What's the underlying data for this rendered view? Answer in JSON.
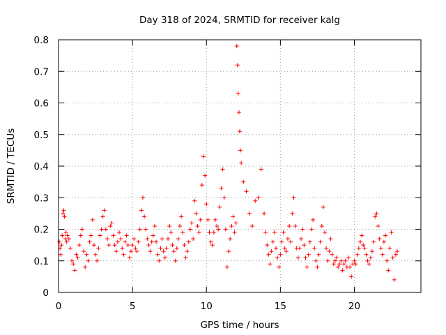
{
  "chart_data": {
    "type": "scatter",
    "title": "Day 318 of 2024, SRMTID for receiver kalg",
    "xlabel": "GPS time / hours",
    "ylabel": "SRMTID / TECUs",
    "xlim": [
      0,
      24.5
    ],
    "ylim": [
      0,
      0.8
    ],
    "xticks": [
      0,
      5,
      10,
      15,
      20
    ],
    "xtick_labels": [
      "0",
      "5",
      "10",
      "15",
      "20"
    ],
    "yticks": [
      0,
      0.1,
      0.2,
      0.3,
      0.4,
      0.5,
      0.6,
      0.7,
      0.8
    ],
    "ytick_labels": [
      "0",
      "0.1",
      "0.2",
      "0.3",
      "0.4",
      "0.5",
      "0.6",
      "0.7",
      "0.8"
    ],
    "grid": true,
    "marker": "+",
    "series_color": "#ff0000",
    "series": [
      {
        "name": "SRMTID",
        "points": [
          [
            0.05,
            0.16
          ],
          [
            0.1,
            0.14
          ],
          [
            0.15,
            0.12
          ],
          [
            0.2,
            0.15
          ],
          [
            0.25,
            0.18
          ],
          [
            0.3,
            0.25
          ],
          [
            0.35,
            0.26
          ],
          [
            0.4,
            0.24
          ],
          [
            0.45,
            0.17
          ],
          [
            0.5,
            0.19
          ],
          [
            0.55,
            0.16
          ],
          [
            0.6,
            0.18
          ],
          [
            0.7,
            0.17
          ],
          [
            0.8,
            0.14
          ],
          [
            0.9,
            0.1
          ],
          [
            1.0,
            0.09
          ],
          [
            1.1,
            0.07
          ],
          [
            1.2,
            0.12
          ],
          [
            1.3,
            0.11
          ],
          [
            1.4,
            0.15
          ],
          [
            1.5,
            0.18
          ],
          [
            1.6,
            0.2
          ],
          [
            1.7,
            0.13
          ],
          [
            1.8,
            0.08
          ],
          [
            1.9,
            0.12
          ],
          [
            2.0,
            0.1
          ],
          [
            2.1,
            0.16
          ],
          [
            2.2,
            0.18
          ],
          [
            2.3,
            0.23
          ],
          [
            2.4,
            0.15
          ],
          [
            2.5,
            0.12
          ],
          [
            2.6,
            0.1
          ],
          [
            2.7,
            0.14
          ],
          [
            2.8,
            0.18
          ],
          [
            2.9,
            0.2
          ],
          [
            3.0,
            0.24
          ],
          [
            3.1,
            0.26
          ],
          [
            3.2,
            0.2
          ],
          [
            3.3,
            0.17
          ],
          [
            3.4,
            0.15
          ],
          [
            3.5,
            0.21
          ],
          [
            3.6,
            0.22
          ],
          [
            3.7,
            0.18
          ],
          [
            3.8,
            0.15
          ],
          [
            3.9,
            0.13
          ],
          [
            4.0,
            0.16
          ],
          [
            4.1,
            0.19
          ],
          [
            4.2,
            0.17
          ],
          [
            4.3,
            0.14
          ],
          [
            4.4,
            0.12
          ],
          [
            4.5,
            0.16
          ],
          [
            4.6,
            0.18
          ],
          [
            4.7,
            0.15
          ],
          [
            4.8,
            0.11
          ],
          [
            4.9,
            0.13
          ],
          [
            5.0,
            0.15
          ],
          [
            5.1,
            0.17
          ],
          [
            5.2,
            0.14
          ],
          [
            5.3,
            0.13
          ],
          [
            5.4,
            0.16
          ],
          [
            5.5,
            0.2
          ],
          [
            5.6,
            0.26
          ],
          [
            5.7,
            0.3
          ],
          [
            5.8,
            0.24
          ],
          [
            5.9,
            0.2
          ],
          [
            6.0,
            0.17
          ],
          [
            6.1,
            0.15
          ],
          [
            6.2,
            0.13
          ],
          [
            6.3,
            0.16
          ],
          [
            6.4,
            0.18
          ],
          [
            6.5,
            0.21
          ],
          [
            6.6,
            0.16
          ],
          [
            6.7,
            0.12
          ],
          [
            6.8,
            0.1
          ],
          [
            6.9,
            0.14
          ],
          [
            7.0,
            0.17
          ],
          [
            7.1,
            0.13
          ],
          [
            7.2,
            0.11
          ],
          [
            7.3,
            0.14
          ],
          [
            7.4,
            0.17
          ],
          [
            7.5,
            0.21
          ],
          [
            7.6,
            0.19
          ],
          [
            7.7,
            0.15
          ],
          [
            7.8,
            0.13
          ],
          [
            7.9,
            0.1
          ],
          [
            8.0,
            0.14
          ],
          [
            8.1,
            0.17
          ],
          [
            8.2,
            0.21
          ],
          [
            8.3,
            0.24
          ],
          [
            8.4,
            0.19
          ],
          [
            8.5,
            0.15
          ],
          [
            8.6,
            0.11
          ],
          [
            8.7,
            0.13
          ],
          [
            8.8,
            0.16
          ],
          [
            8.9,
            0.2
          ],
          [
            9.0,
            0.22
          ],
          [
            9.1,
            0.17
          ],
          [
            9.2,
            0.29
          ],
          [
            9.3,
            0.25
          ],
          [
            9.4,
            0.21
          ],
          [
            9.5,
            0.19
          ],
          [
            9.6,
            0.23
          ],
          [
            9.7,
            0.34
          ],
          [
            9.8,
            0.43
          ],
          [
            9.9,
            0.37
          ],
          [
            10.0,
            0.28
          ],
          [
            10.1,
            0.23
          ],
          [
            10.2,
            0.19
          ],
          [
            10.3,
            0.16
          ],
          [
            10.4,
            0.15
          ],
          [
            10.5,
            0.19
          ],
          [
            10.6,
            0.23
          ],
          [
            10.7,
            0.21
          ],
          [
            10.8,
            0.2
          ],
          [
            10.9,
            0.27
          ],
          [
            11.0,
            0.33
          ],
          [
            11.1,
            0.39
          ],
          [
            11.2,
            0.3
          ],
          [
            11.3,
            0.2
          ],
          [
            11.4,
            0.08
          ],
          [
            11.5,
            0.13
          ],
          [
            11.6,
            0.17
          ],
          [
            11.7,
            0.21
          ],
          [
            11.8,
            0.24
          ],
          [
            11.9,
            0.19
          ],
          [
            12.0,
            0.22
          ],
          [
            12.05,
            0.78
          ],
          [
            12.1,
            0.72
          ],
          [
            12.15,
            0.63
          ],
          [
            12.2,
            0.57
          ],
          [
            12.25,
            0.51
          ],
          [
            12.3,
            0.45
          ],
          [
            12.35,
            0.41
          ],
          [
            12.5,
            0.35
          ],
          [
            12.7,
            0.32
          ],
          [
            12.9,
            0.25
          ],
          [
            13.1,
            0.21
          ],
          [
            13.3,
            0.29
          ],
          [
            13.5,
            0.3
          ],
          [
            13.7,
            0.39
          ],
          [
            13.9,
            0.25
          ],
          [
            14.0,
            0.19
          ],
          [
            14.1,
            0.15
          ],
          [
            14.2,
            0.12
          ],
          [
            14.3,
            0.09
          ],
          [
            14.4,
            0.13
          ],
          [
            14.5,
            0.16
          ],
          [
            14.6,
            0.19
          ],
          [
            14.7,
            0.14
          ],
          [
            14.8,
            0.11
          ],
          [
            14.9,
            0.08
          ],
          [
            15.0,
            0.12
          ],
          [
            15.1,
            0.16
          ],
          [
            15.2,
            0.19
          ],
          [
            15.3,
            0.14
          ],
          [
            15.4,
            0.13
          ],
          [
            15.5,
            0.17
          ],
          [
            15.6,
            0.21
          ],
          [
            15.7,
            0.16
          ],
          [
            15.8,
            0.25
          ],
          [
            15.9,
            0.3
          ],
          [
            16.0,
            0.21
          ],
          [
            16.1,
            0.14
          ],
          [
            16.2,
            0.11
          ],
          [
            16.3,
            0.14
          ],
          [
            16.4,
            0.17
          ],
          [
            16.5,
            0.2
          ],
          [
            16.6,
            0.15
          ],
          [
            16.7,
            0.11
          ],
          [
            16.8,
            0.08
          ],
          [
            16.9,
            0.12
          ],
          [
            17.0,
            0.16
          ],
          [
            17.1,
            0.2
          ],
          [
            17.2,
            0.23
          ],
          [
            17.3,
            0.14
          ],
          [
            17.4,
            0.1
          ],
          [
            17.5,
            0.08
          ],
          [
            17.6,
            0.12
          ],
          [
            17.7,
            0.16
          ],
          [
            17.8,
            0.21
          ],
          [
            17.9,
            0.27
          ],
          [
            18.0,
            0.19
          ],
          [
            18.1,
            0.14
          ],
          [
            18.2,
            0.1
          ],
          [
            18.3,
            0.13
          ],
          [
            18.4,
            0.17
          ],
          [
            18.5,
            0.12
          ],
          [
            18.6,
            0.09
          ],
          [
            18.7,
            0.1
          ],
          [
            18.8,
            0.11
          ],
          [
            18.9,
            0.08
          ],
          [
            19.0,
            0.09
          ],
          [
            19.1,
            0.1
          ],
          [
            19.2,
            0.07
          ],
          [
            19.3,
            0.09
          ],
          [
            19.4,
            0.1
          ],
          [
            19.5,
            0.08
          ],
          [
            19.6,
            0.11
          ],
          [
            19.7,
            0.08
          ],
          [
            19.8,
            0.05
          ],
          [
            19.9,
            0.09
          ],
          [
            20.0,
            0.1
          ],
          [
            20.1,
            0.09
          ],
          [
            20.2,
            0.12
          ],
          [
            20.3,
            0.14
          ],
          [
            20.4,
            0.16
          ],
          [
            20.5,
            0.18
          ],
          [
            20.6,
            0.15
          ],
          [
            20.7,
            0.14
          ],
          [
            20.8,
            0.12
          ],
          [
            20.9,
            0.1
          ],
          [
            21.0,
            0.09
          ],
          [
            21.1,
            0.11
          ],
          [
            21.2,
            0.13
          ],
          [
            21.3,
            0.16
          ],
          [
            21.4,
            0.24
          ],
          [
            21.5,
            0.25
          ],
          [
            21.6,
            0.21
          ],
          [
            21.7,
            0.17
          ],
          [
            21.8,
            0.14
          ],
          [
            21.9,
            0.12
          ],
          [
            22.0,
            0.16
          ],
          [
            22.1,
            0.18
          ],
          [
            22.2,
            0.1
          ],
          [
            22.3,
            0.07
          ],
          [
            22.4,
            0.14
          ],
          [
            22.5,
            0.19
          ],
          [
            22.6,
            0.11
          ],
          [
            22.7,
            0.04
          ],
          [
            22.8,
            0.12
          ],
          [
            22.9,
            0.13
          ]
        ]
      }
    ]
  }
}
